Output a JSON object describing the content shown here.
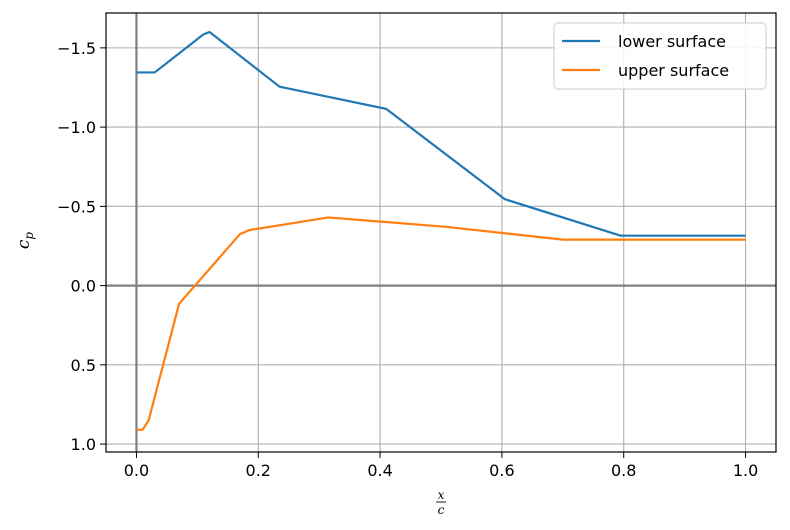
{
  "chart_data": {
    "type": "line",
    "xlabel_numerator": "x",
    "xlabel_denominator": "c",
    "ylabel_base": "c",
    "ylabel_sub": "p",
    "xlim": [
      -0.05,
      1.05
    ],
    "ylim": [
      1.05,
      -1.72
    ],
    "y_inverted": true,
    "grid": true,
    "legend_position": "top-right",
    "x_ticks": [
      0.0,
      0.2,
      0.4,
      0.6,
      0.8,
      1.0
    ],
    "x_tick_labels": [
      "0.0",
      "0.2",
      "0.4",
      "0.6",
      "0.8",
      "1.0"
    ],
    "y_ticks": [
      -1.5,
      -1.0,
      -0.5,
      0.0,
      0.5,
      1.0
    ],
    "y_tick_labels": [
      "−1.5",
      "−1.0",
      "−0.5",
      "0.0",
      "0.5",
      "1.0"
    ],
    "zero_lines": {
      "x": 0.0,
      "y": 0.0,
      "color": "#808080"
    },
    "series": [
      {
        "name": "lower surface",
        "color": "#1f77b4",
        "x": [
          0.0,
          0.03,
          0.11,
          0.12,
          0.235,
          0.41,
          0.605,
          0.795,
          1.0
        ],
        "y": [
          -1.345,
          -1.345,
          -1.585,
          -1.6,
          -1.255,
          -1.115,
          -0.545,
          -0.315,
          -0.315
        ]
      },
      {
        "name": "upper surface",
        "color": "#ff7f0e",
        "x": [
          0.0,
          0.01,
          0.02,
          0.07,
          0.17,
          0.185,
          0.315,
          0.51,
          0.7,
          1.0
        ],
        "y": [
          0.91,
          0.91,
          0.85,
          0.115,
          -0.325,
          -0.35,
          -0.43,
          -0.37,
          -0.29,
          -0.29
        ]
      }
    ]
  }
}
